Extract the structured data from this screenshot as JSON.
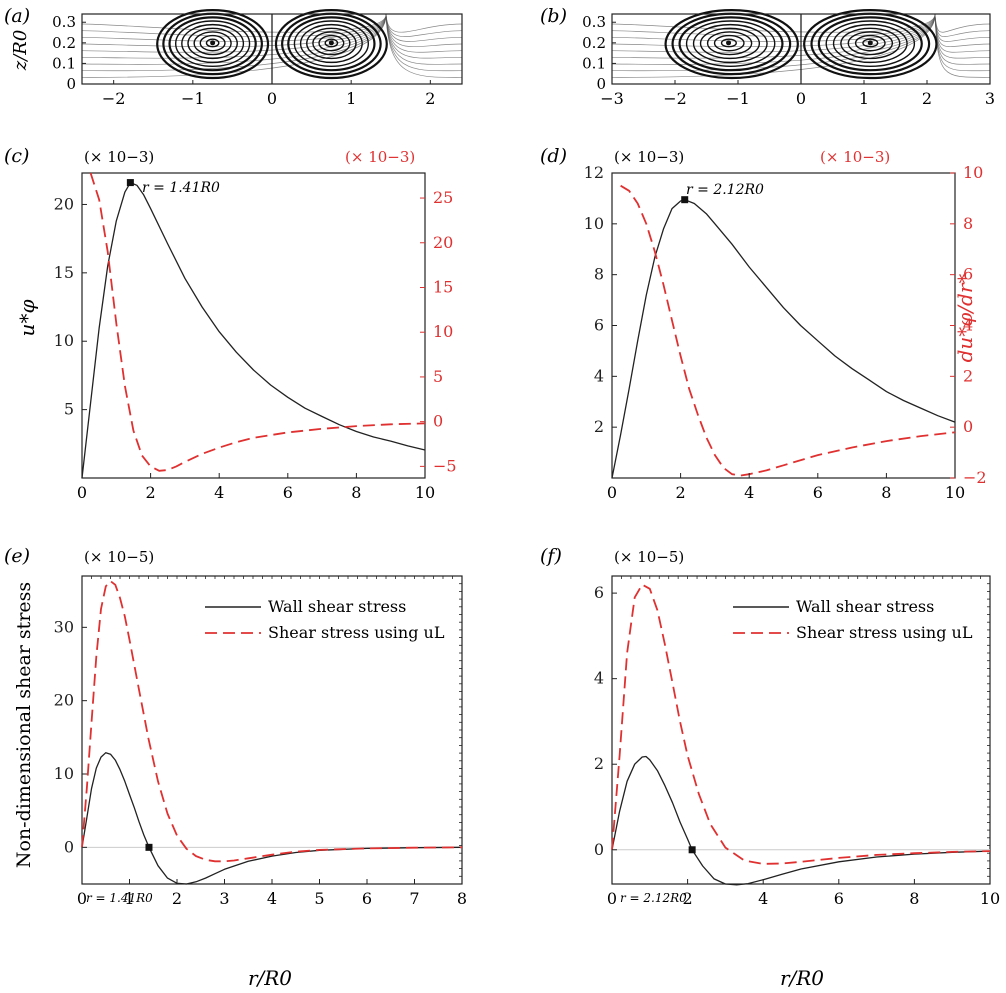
{
  "colors": {
    "black": "#222222",
    "red": "#e03030",
    "stream": "#555555",
    "zero_line": "#cccccc"
  },
  "chart_data": [
    {
      "id": "a",
      "panel_label": "(a)",
      "type": "streamline",
      "ylabel": "z/R0",
      "xlim": [
        -2.4,
        2.4
      ],
      "ylim": [
        0,
        0.34
      ],
      "xticks": [
        "-2",
        "-1",
        "0",
        "1",
        "2"
      ],
      "yticks": [
        "0",
        "0.1",
        "0.2",
        "0.3"
      ],
      "vortex_centers": [
        [
          -0.75,
          0.2
        ],
        [
          0.75,
          0.2
        ]
      ],
      "vortex_extent": [
        [
          -1.45,
          -0.05
        ],
        [
          0.05,
          1.45
        ]
      ]
    },
    {
      "id": "b",
      "panel_label": "(b)",
      "type": "streamline",
      "xlim": [
        -3,
        3
      ],
      "ylim": [
        0,
        0.34
      ],
      "xticks": [
        "-3",
        "-2",
        "-1",
        "0",
        "1",
        "2",
        "3"
      ],
      "yticks": [
        "0",
        "0.1",
        "0.2",
        "0.3"
      ],
      "vortex_centers": [
        [
          -1.15,
          0.2
        ],
        [
          1.1,
          0.2
        ]
      ],
      "vortex_extent": [
        [
          -2.15,
          -0.05
        ],
        [
          0.05,
          2.15
        ]
      ]
    },
    {
      "id": "c",
      "panel_label": "(c)",
      "type": "line",
      "ylabel_left": "u*φ",
      "scale_left": "(× 10−3)",
      "scale_right": "(× 10−3)",
      "xlim": [
        0,
        10
      ],
      "ylim_left": [
        0,
        22.3
      ],
      "ylim_right": [
        -6.3,
        27.8
      ],
      "xticks": [
        "0",
        "2",
        "4",
        "6",
        "8",
        "10"
      ],
      "yticks_left": [
        "5",
        "10",
        "15",
        "20"
      ],
      "yticks_right": [
        "−5",
        "0",
        "5",
        "10",
        "15",
        "20",
        "25"
      ],
      "annotation": "r = 1.41R0",
      "marker": [
        1.41,
        21.6
      ],
      "series": [
        {
          "axis": "left",
          "style": "solid",
          "x": [
            0,
            0.25,
            0.5,
            0.75,
            1.0,
            1.25,
            1.41,
            1.6,
            1.8,
            2.0,
            2.5,
            3.0,
            3.5,
            4.0,
            4.5,
            5.0,
            5.5,
            6.0,
            6.5,
            7.0,
            7.5,
            8.0,
            8.5,
            9.0,
            9.5,
            10.0
          ],
          "y": [
            0,
            5.5,
            11.0,
            15.5,
            18.8,
            20.9,
            21.6,
            21.4,
            20.7,
            19.7,
            17.1,
            14.6,
            12.5,
            10.7,
            9.2,
            7.9,
            6.8,
            5.9,
            5.1,
            4.5,
            3.9,
            3.4,
            3.0,
            2.7,
            2.35,
            2.05
          ]
        },
        {
          "axis": "right",
          "style": "dashed",
          "x": [
            0.25,
            0.5,
            0.75,
            1.0,
            1.25,
            1.5,
            1.75,
            2.0,
            2.25,
            2.5,
            2.75,
            3.0,
            3.5,
            4.0,
            4.5,
            5.0,
            6.0,
            7.0,
            8.0,
            9.0,
            10.0
          ],
          "y": [
            27.8,
            24.8,
            19.0,
            11.0,
            4.0,
            -1.0,
            -3.8,
            -5.0,
            -5.5,
            -5.4,
            -5.0,
            -4.5,
            -3.6,
            -2.9,
            -2.3,
            -1.8,
            -1.2,
            -0.8,
            -0.5,
            -0.3,
            -0.2
          ]
        }
      ]
    },
    {
      "id": "d",
      "panel_label": "(d)",
      "type": "line",
      "ylabel_right": "du*φ/dr*",
      "scale_left": "(× 10−3)",
      "scale_right": "(× 10−3)",
      "xlim": [
        0,
        10
      ],
      "ylim_left": [
        0,
        12
      ],
      "ylim_right": [
        -2,
        10
      ],
      "xticks": [
        "0",
        "2",
        "4",
        "6",
        "8",
        "10"
      ],
      "yticks_left": [
        "2",
        "4",
        "6",
        "8",
        "10",
        "12"
      ],
      "yticks_right": [
        "−2",
        "0",
        "2",
        "4",
        "6",
        "8",
        "10"
      ],
      "annotation": "r = 2.12R0",
      "marker": [
        2.12,
        10.95
      ],
      "series": [
        {
          "axis": "left",
          "style": "solid",
          "x": [
            0,
            0.25,
            0.5,
            0.75,
            1.0,
            1.25,
            1.5,
            1.75,
            2.0,
            2.12,
            2.4,
            2.75,
            3.0,
            3.5,
            4.0,
            4.5,
            5.0,
            5.5,
            6.0,
            6.5,
            7.0,
            7.5,
            8.0,
            8.5,
            9.0,
            9.5,
            10.0
          ],
          "y": [
            0,
            1.7,
            3.5,
            5.4,
            7.2,
            8.7,
            9.8,
            10.6,
            10.9,
            10.95,
            10.8,
            10.4,
            10.0,
            9.2,
            8.3,
            7.5,
            6.7,
            6.0,
            5.4,
            4.8,
            4.3,
            3.85,
            3.4,
            3.05,
            2.75,
            2.45,
            2.2
          ]
        },
        {
          "axis": "right",
          "style": "dashed",
          "x": [
            0.25,
            0.5,
            0.75,
            1.0,
            1.25,
            1.5,
            1.75,
            2.0,
            2.25,
            2.5,
            2.75,
            3.0,
            3.25,
            3.5,
            3.75,
            4.0,
            4.5,
            5.0,
            6.0,
            7.0,
            8.0,
            9.0,
            10.0
          ],
          "y": [
            9.5,
            9.3,
            8.8,
            8.0,
            6.9,
            5.6,
            4.2,
            2.8,
            1.5,
            0.5,
            -0.4,
            -1.1,
            -1.6,
            -1.85,
            -1.9,
            -1.85,
            -1.7,
            -1.5,
            -1.1,
            -0.8,
            -0.55,
            -0.35,
            -0.2
          ]
        }
      ]
    },
    {
      "id": "e",
      "panel_label": "(e)",
      "type": "line",
      "ylabel": "Non-dimensional shear stress",
      "xlabel": "r/R0",
      "scale_left": "(× 10−5)",
      "xlim": [
        0,
        8
      ],
      "ylim": [
        -5,
        37
      ],
      "xticks": [
        "0",
        "1",
        "2",
        "3",
        "4",
        "5",
        "6",
        "7",
        "8"
      ],
      "yticks": [
        "0",
        "10",
        "20",
        "30"
      ],
      "annotation": "r = 1.41R0",
      "marker": [
        1.41,
        0
      ],
      "legend": [
        "Wall shear stress",
        "Shear stress using uL"
      ],
      "legend_position": "top-right",
      "series": [
        {
          "name": "Wall shear stress",
          "style": "solid",
          "x": [
            0,
            0.1,
            0.2,
            0.3,
            0.4,
            0.5,
            0.6,
            0.7,
            0.8,
            0.9,
            1.0,
            1.1,
            1.2,
            1.3,
            1.41,
            1.6,
            1.8,
            2.0,
            2.2,
            2.4,
            2.6,
            2.8,
            3.0,
            3.5,
            4.0,
            4.5,
            5.0,
            6.0,
            7.0,
            8.0
          ],
          "y": [
            0,
            4.0,
            8.0,
            10.8,
            12.3,
            12.9,
            12.7,
            11.9,
            10.6,
            9.0,
            7.2,
            5.4,
            3.5,
            1.7,
            0,
            -2.5,
            -4.2,
            -4.9,
            -5.0,
            -4.7,
            -4.2,
            -3.6,
            -3.0,
            -1.9,
            -1.2,
            -0.7,
            -0.4,
            -0.15,
            -0.05,
            0
          ]
        },
        {
          "name": "Shear stress using uL",
          "style": "dashed",
          "x": [
            0,
            0.1,
            0.2,
            0.3,
            0.4,
            0.5,
            0.6,
            0.7,
            0.8,
            0.9,
            1.0,
            1.2,
            1.4,
            1.6,
            1.8,
            2.0,
            2.2,
            2.4,
            2.6,
            2.8,
            3.0,
            3.2,
            3.5,
            4.0,
            4.5,
            5.0,
            6.0,
            7.0,
            8.0
          ],
          "y": [
            0,
            8.0,
            17.0,
            26.0,
            32.5,
            35.6,
            36.3,
            35.8,
            34.0,
            31.5,
            28.3,
            21.5,
            14.8,
            9.0,
            4.6,
            1.6,
            -0.2,
            -1.2,
            -1.7,
            -1.9,
            -1.9,
            -1.8,
            -1.5,
            -1.0,
            -0.6,
            -0.35,
            -0.15,
            -0.05,
            0
          ]
        }
      ]
    },
    {
      "id": "f",
      "panel_label": "(f)",
      "type": "line",
      "xlabel": "r/R0",
      "scale_left": "(× 10−5)",
      "xlim": [
        0,
        10
      ],
      "ylim": [
        -0.8,
        6.4
      ],
      "xticks": [
        "0",
        "2",
        "4",
        "6",
        "8",
        "10"
      ],
      "yticks": [
        "0",
        "2",
        "4",
        "6"
      ],
      "annotation": "r = 2.12R0",
      "marker": [
        2.12,
        0
      ],
      "legend": [
        "Wall shear stress",
        "Shear stress using uL"
      ],
      "legend_position": "top-right",
      "series": [
        {
          "name": "Wall shear stress",
          "style": "solid",
          "x": [
            0,
            0.2,
            0.4,
            0.6,
            0.8,
            0.9,
            1.0,
            1.2,
            1.4,
            1.6,
            1.8,
            2.0,
            2.12,
            2.4,
            2.7,
            3.0,
            3.3,
            3.6,
            4.0,
            4.5,
            5.0,
            6.0,
            7.0,
            8.0,
            9.0,
            10.0
          ],
          "y": [
            0,
            0.9,
            1.6,
            2.0,
            2.17,
            2.18,
            2.1,
            1.85,
            1.5,
            1.1,
            0.65,
            0.25,
            0,
            -0.38,
            -0.68,
            -0.8,
            -0.82,
            -0.79,
            -0.7,
            -0.57,
            -0.45,
            -0.28,
            -0.17,
            -0.1,
            -0.06,
            -0.03
          ]
        },
        {
          "name": "Shear stress using uL",
          "style": "dashed",
          "x": [
            0,
            0.2,
            0.4,
            0.6,
            0.8,
            1.0,
            1.2,
            1.4,
            1.6,
            1.8,
            2.0,
            2.3,
            2.6,
            3.0,
            3.5,
            4.0,
            4.5,
            5.0,
            6.0,
            7.0,
            8.0,
            9.0,
            10.0
          ],
          "y": [
            0,
            2.2,
            4.6,
            5.9,
            6.2,
            6.1,
            5.6,
            4.8,
            3.9,
            3.0,
            2.2,
            1.3,
            0.6,
            0.05,
            -0.25,
            -0.33,
            -0.32,
            -0.28,
            -0.19,
            -0.12,
            -0.08,
            -0.05,
            -0.03
          ]
        }
      ]
    }
  ]
}
